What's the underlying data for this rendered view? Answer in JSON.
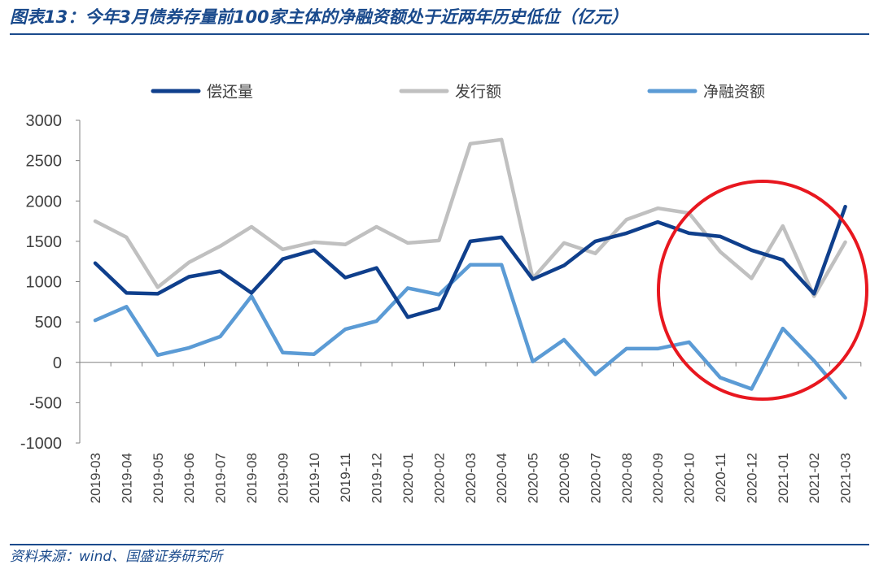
{
  "header": {
    "title": "图表13：今年3月债券存量前100家主体的净融资额处于近两年历史低位（亿元）"
  },
  "footer": {
    "source": "资料来源：wind、国盛证券研究所"
  },
  "colors": {
    "brand": "#1a4a8c",
    "highlight_circle": "#e8171f"
  },
  "chart_data": {
    "type": "line",
    "categories": [
      "2019-03",
      "2019-04",
      "2019-05",
      "2019-06",
      "2019-07",
      "2019-08",
      "2019-09",
      "2019-10",
      "2019-11",
      "2019-12",
      "2020-01",
      "2020-02",
      "2020-03",
      "2020-04",
      "2020-05",
      "2020-06",
      "2020-07",
      "2020-08",
      "2020-09",
      "2020-10",
      "2020-11",
      "2020-12",
      "2021-01",
      "2021-02",
      "2021-03"
    ],
    "series": [
      {
        "name": "偿还量",
        "color": "#0f3f8c",
        "values": [
          1230,
          860,
          850,
          1060,
          1130,
          860,
          1280,
          1390,
          1050,
          1170,
          560,
          670,
          1500,
          1550,
          1030,
          1200,
          1500,
          1600,
          1740,
          1600,
          1560,
          1390,
          1270,
          850,
          1930
        ]
      },
      {
        "name": "发行额",
        "color": "#c0c0c0",
        "values": [
          1750,
          1550,
          930,
          1240,
          1440,
          1680,
          1400,
          1490,
          1460,
          1680,
          1480,
          1510,
          2710,
          2760,
          1040,
          1480,
          1350,
          1770,
          1910,
          1850,
          1370,
          1040,
          1690,
          820,
          1490
        ]
      },
      {
        "name": "净融资额",
        "color": "#5b9bd5",
        "values": [
          520,
          690,
          90,
          180,
          320,
          820,
          120,
          100,
          410,
          510,
          920,
          840,
          1210,
          1210,
          10,
          280,
          -150,
          170,
          170,
          250,
          -190,
          -330,
          420,
          20,
          -440
        ]
      }
    ],
    "xlabel": "",
    "ylabel": "",
    "ylim": [
      -1000,
      3000
    ],
    "yticks": [
      -1000,
      -500,
      0,
      500,
      1000,
      1500,
      2000,
      2500,
      3000
    ],
    "grid": false,
    "legend_position": "top",
    "annotation": "red circle highlighting 2020-10 to 2021-03"
  }
}
